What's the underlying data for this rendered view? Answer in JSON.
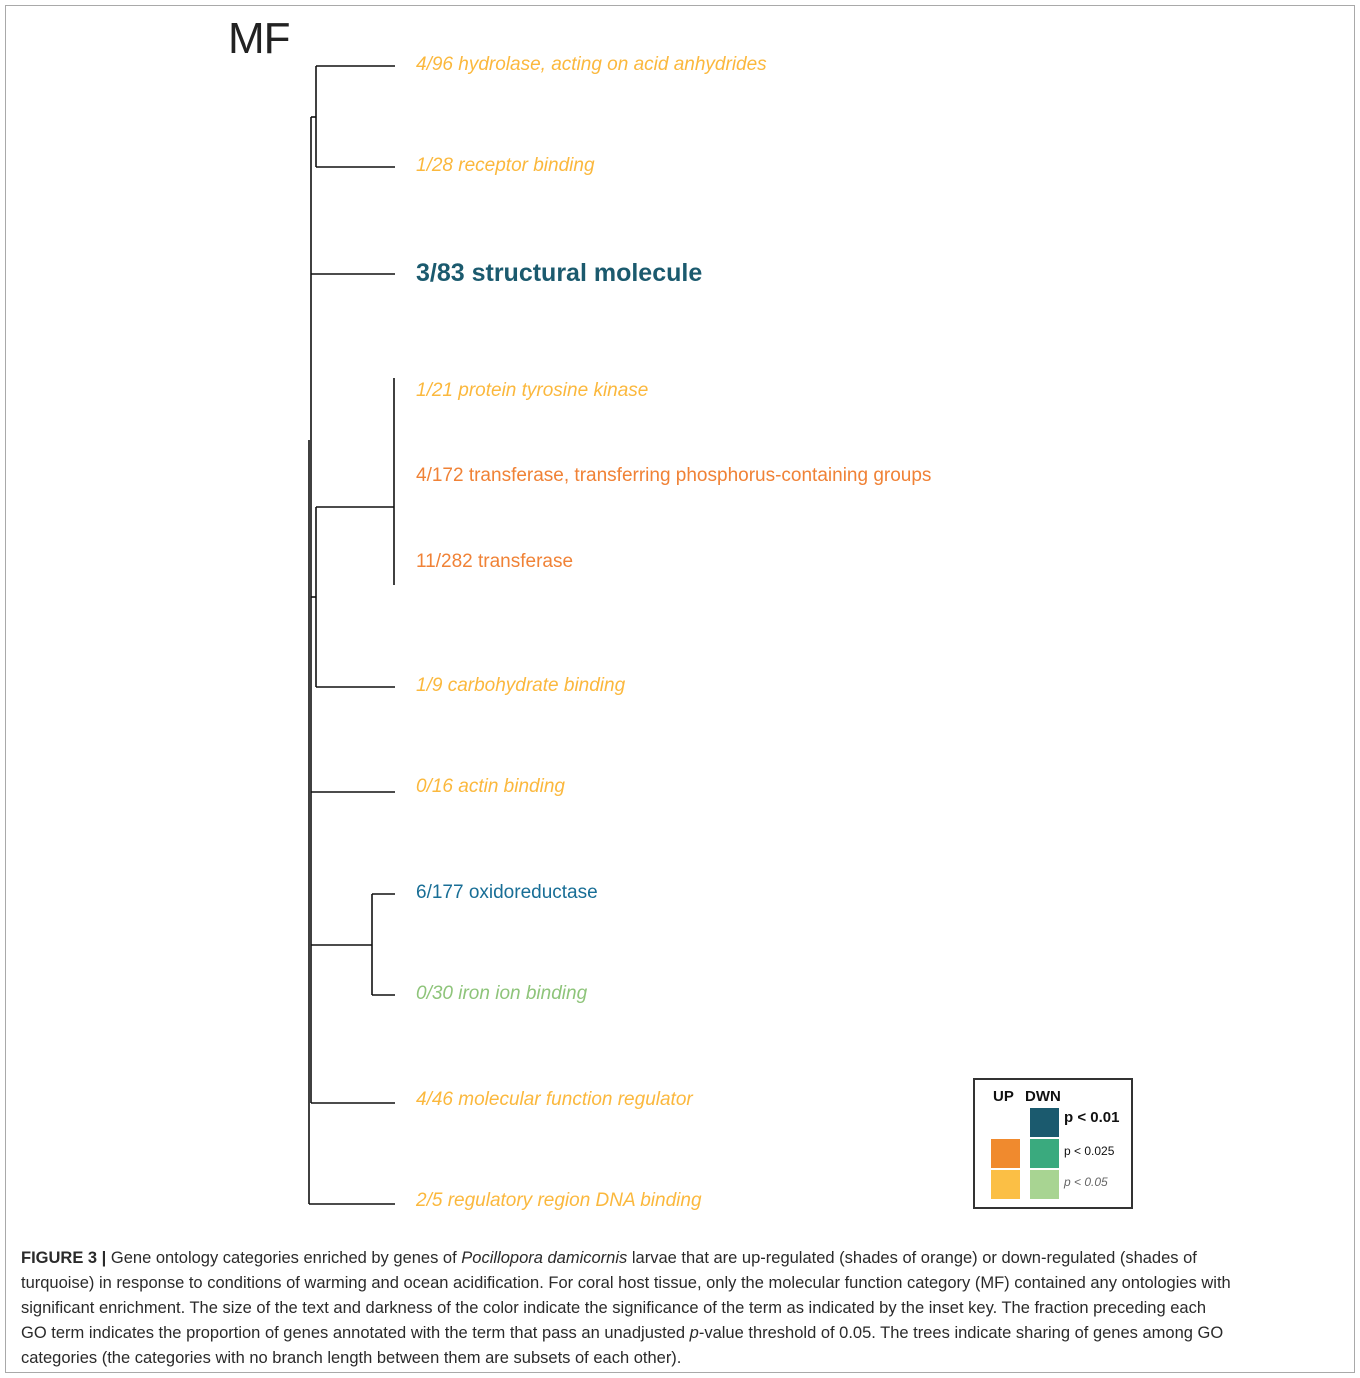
{
  "panel_label": "MF",
  "colors": {
    "up": {
      "p01": "#e0611b",
      "p025": "#f08236",
      "p05": "#fbb83d"
    },
    "down": {
      "p01": "#1b5a6e",
      "p025": "#186e96",
      "p05": "#8ec47a"
    },
    "tree_line": "#111111"
  },
  "terms": [
    {
      "label": "4/96 hydrolase, acting on acid anhydrides",
      "direction": "up",
      "significance": "p05"
    },
    {
      "label": "1/28 receptor binding",
      "direction": "up",
      "significance": "p05"
    },
    {
      "label": "3/83 structural molecule",
      "direction": "down",
      "significance": "p01"
    },
    {
      "label": "1/21 protein tyrosine kinase",
      "direction": "up",
      "significance": "p05"
    },
    {
      "label": "4/172 transferase, transferring phosphorus-containing groups",
      "direction": "up",
      "significance": "p025"
    },
    {
      "label": "11/282 transferase",
      "direction": "up",
      "significance": "p025"
    },
    {
      "label": "1/9 carbohydrate binding",
      "direction": "up",
      "significance": "p05"
    },
    {
      "label": "0/16 actin binding",
      "direction": "up",
      "significance": "p05"
    },
    {
      "label": "6/177 oxidoreductase",
      "direction": "down",
      "significance": "p025"
    },
    {
      "label": "0/30 iron ion binding",
      "direction": "down",
      "significance": "p05"
    },
    {
      "label": "4/46 molecular function regulator",
      "direction": "up",
      "significance": "p05"
    },
    {
      "label": "2/5 regulatory region DNA binding",
      "direction": "up",
      "significance": "p05"
    }
  ],
  "legend": {
    "up_header": "UP",
    "down_header": "DWN",
    "rows": [
      {
        "label": "p < 0.01",
        "up_color": null,
        "down_color": "#1b5a6e"
      },
      {
        "label": "p < 0.025",
        "up_color": "#f08a2e",
        "down_color": "#3aaa7e"
      },
      {
        "label": "p < 0.05",
        "up_color": "#fbbf45",
        "down_color": "#a8d492"
      }
    ]
  },
  "caption": {
    "figure_label": "FIGURE 3 |",
    "line1_a": " Gene ontology categories enriched by genes of ",
    "species": "Pocillopora damicornis",
    "line1_b": " larvae that are up-regulated (shades of orange) or down-regulated (shades of",
    "line2": "turquoise) in response to conditions of warming and ocean acidification. For coral host tissue, only the molecular function category (MF) contained any ontologies with",
    "line3": "significant enrichment. The size of the text and darkness of the color indicate the significance of the term as indicated by the inset key. The fraction preceding each",
    "line4_a": "GO term indicates the proportion of genes annotated with the term that pass an unadjusted ",
    "p_symbol": "p",
    "line4_b": "-value threshold of 0.05. The trees indicate sharing of genes among GO",
    "line5": "categories (the categories with no branch length between them are subsets of each other)."
  }
}
